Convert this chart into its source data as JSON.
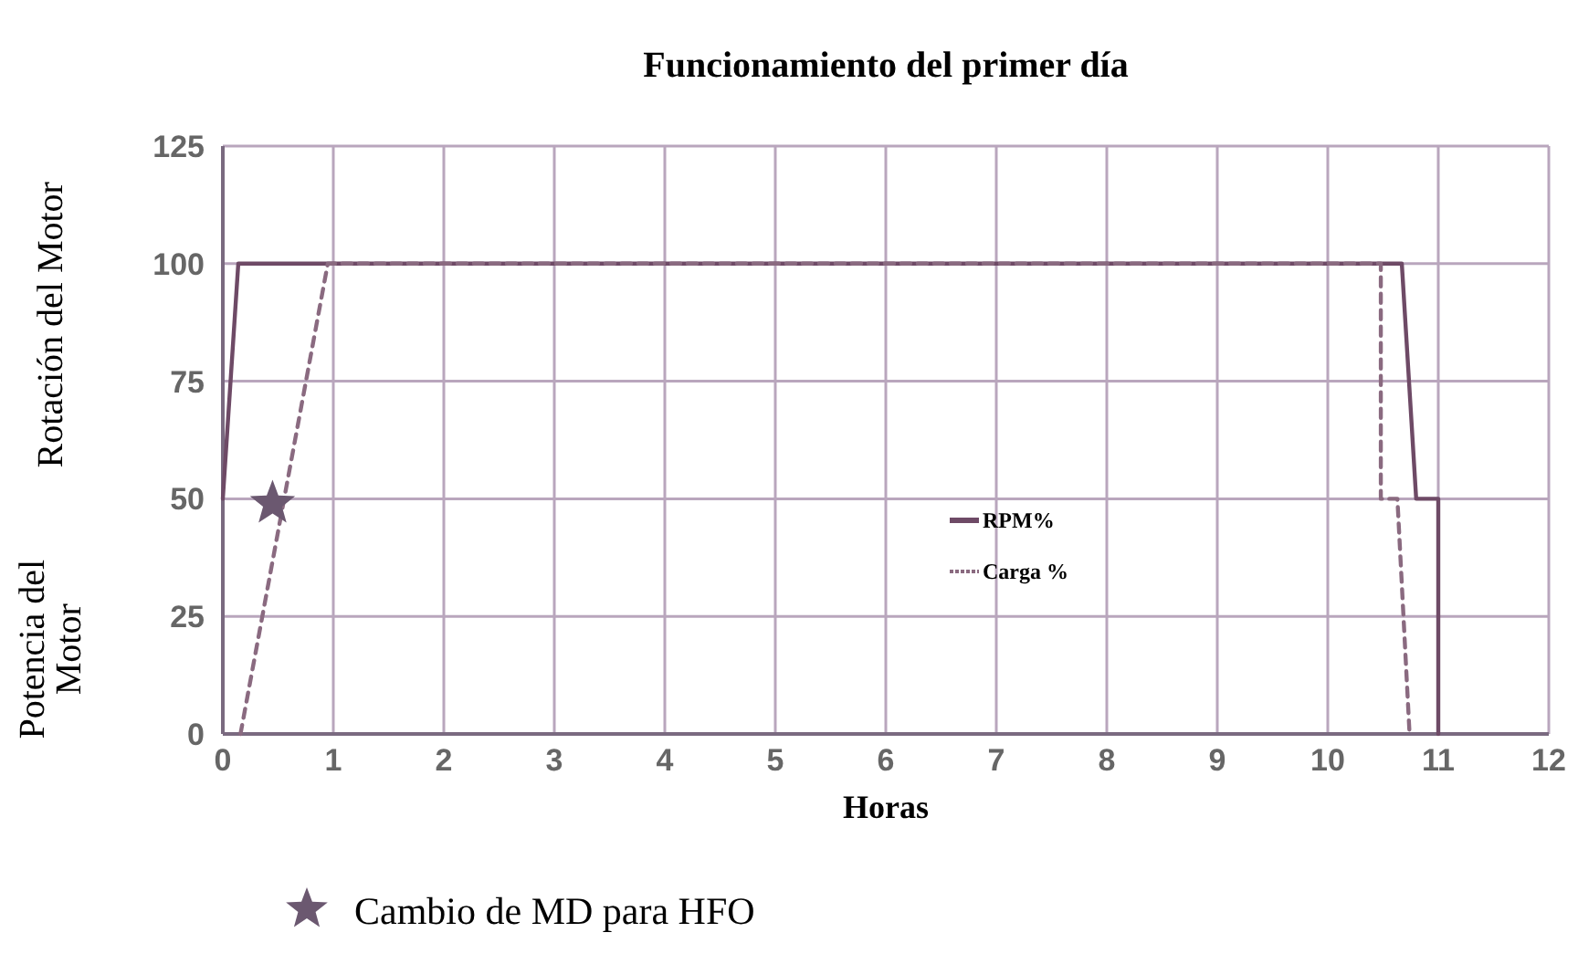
{
  "chart_data": {
    "type": "line",
    "title": "Funcionamiento del primer día",
    "xlabel": "Horas",
    "ylabel": "Rotación del Motor",
    "annotations": [
      "Potencia del Motor"
    ],
    "xlim": [
      0,
      12
    ],
    "xticks": [
      0,
      1,
      2,
      3,
      4,
      5,
      6,
      7,
      8,
      9,
      10,
      11,
      12
    ],
    "ylim": [
      0,
      125
    ],
    "yticks": [
      0,
      25,
      50,
      75,
      100,
      125
    ],
    "grid": true,
    "legend": "center",
    "series": [
      {
        "name": "RPM%",
        "color": "#6e4a66",
        "line_style": "solid",
        "x": [
          0,
          0.14,
          10.67,
          10.8,
          11,
          11
        ],
        "values": [
          50,
          100,
          100,
          50,
          50,
          0
        ]
      },
      {
        "name": "Carga %",
        "color": "#8a6a80",
        "line_style": "dashed",
        "x": [
          0.16,
          0.95,
          10.48,
          10.48,
          10.63,
          10.74
        ],
        "values": [
          0,
          100,
          100,
          50,
          50,
          0
        ]
      },
      {
        "name": "Cambio de MD para HFO",
        "type": "scatter",
        "marker": "star",
        "color": "#6b5870",
        "x": [
          0.45
        ],
        "values": [
          49
        ]
      }
    ]
  }
}
